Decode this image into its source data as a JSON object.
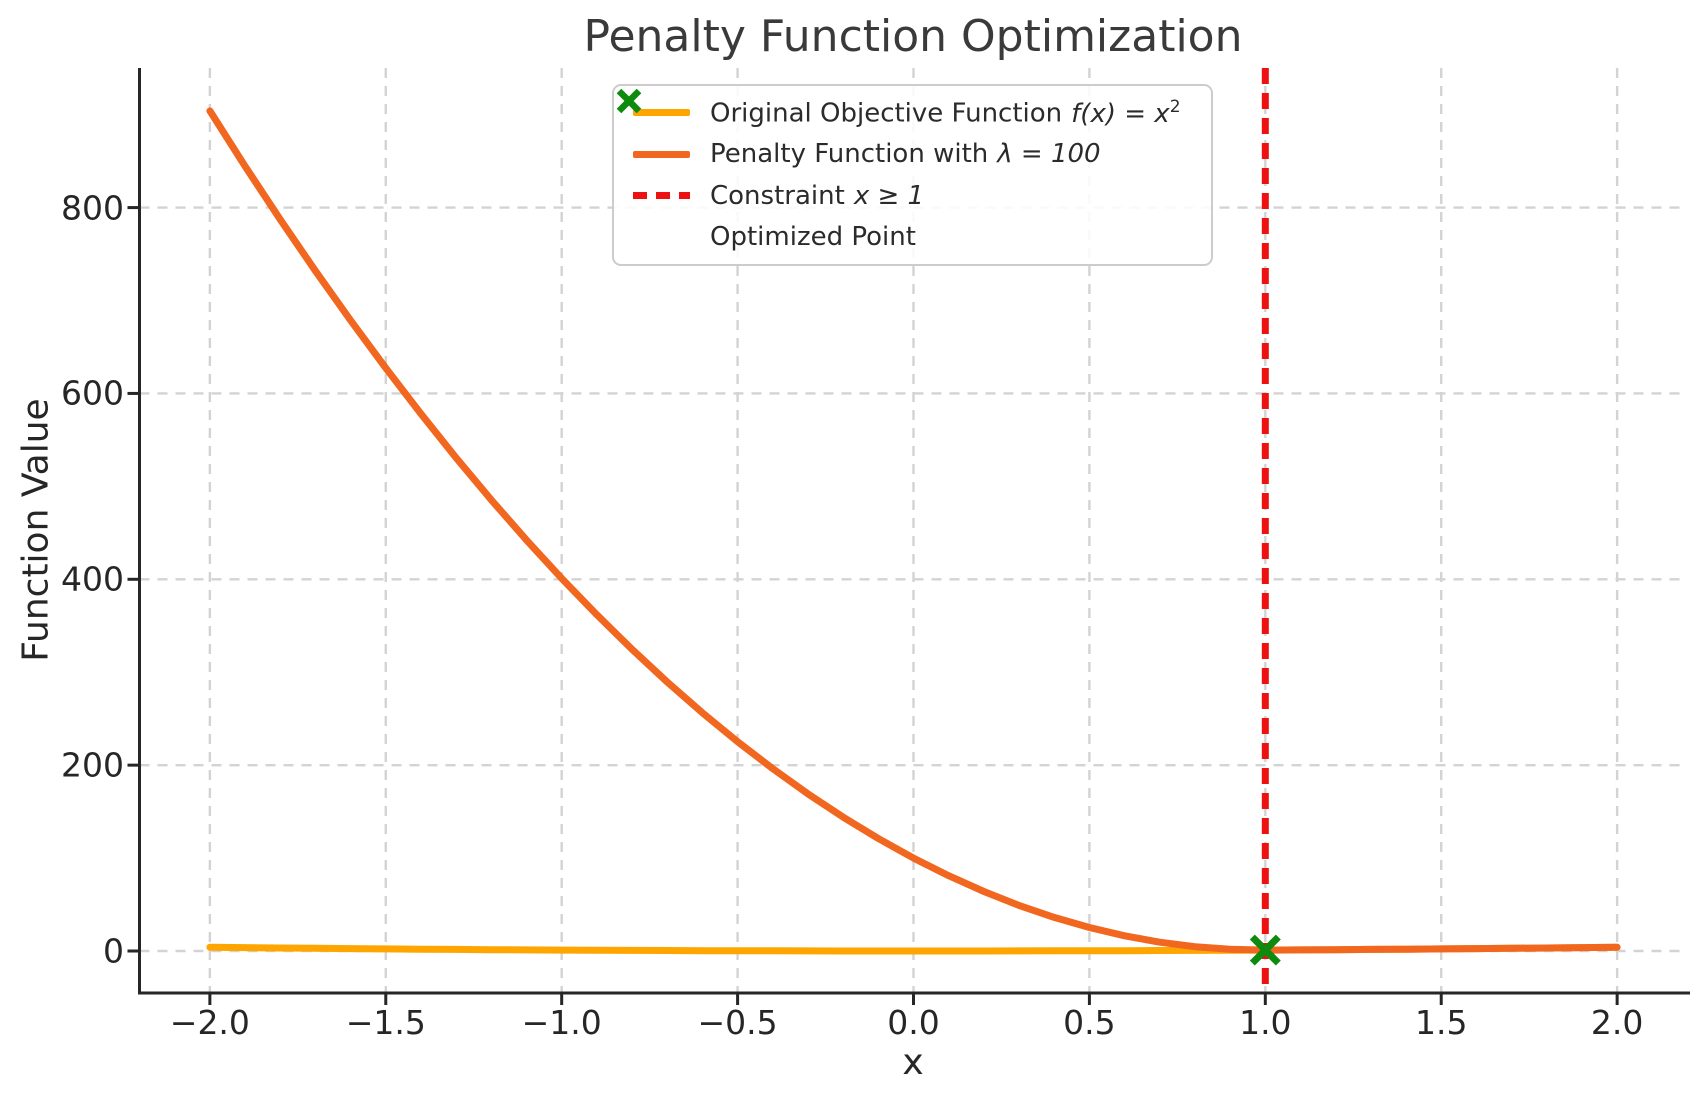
{
  "chart_data": {
    "type": "line",
    "title": "Penalty Function Optimization",
    "xlabel": "x",
    "ylabel": "Function Value",
    "xlim": [
      -2.2,
      2.2
    ],
    "ylim": [
      -45.2,
      950.2
    ],
    "grid": true,
    "background_color": "#ffffff",
    "x_ticks": {
      "values": [
        -2.0,
        -1.5,
        -1.0,
        -0.5,
        0.0,
        0.5,
        1.0,
        1.5,
        2.0
      ],
      "labels": [
        "−2.0",
        "−1.5",
        "−1.0",
        "−0.5",
        "0.0",
        "0.5",
        "1.0",
        "1.5",
        "2.0"
      ]
    },
    "y_ticks": {
      "values": [
        0,
        200,
        400,
        600,
        800
      ],
      "labels": [
        "0",
        "200",
        "400",
        "600",
        "800"
      ]
    },
    "x": [
      -2.0,
      -1.9,
      -1.8,
      -1.7,
      -1.6,
      -1.5,
      -1.4,
      -1.3,
      -1.2,
      -1.1,
      -1.0,
      -0.9,
      -0.8,
      -0.7,
      -0.6,
      -0.5,
      -0.4,
      -0.3,
      -0.2,
      -0.1,
      0.0,
      0.1,
      0.2,
      0.3,
      0.4,
      0.5,
      0.6,
      0.7,
      0.8,
      0.9,
      1.0,
      1.1,
      1.2,
      1.3,
      1.4,
      1.5,
      1.6,
      1.7,
      1.8,
      1.9,
      2.0
    ],
    "series": [
      {
        "name": "Original Objective Function f(x) = x²",
        "color": "#FFA500",
        "style": "solid",
        "values": [
          4.0,
          3.61,
          3.24,
          2.89,
          2.56,
          2.25,
          1.96,
          1.69,
          1.44,
          1.21,
          1.0,
          0.81,
          0.64,
          0.49,
          0.36,
          0.25,
          0.16,
          0.09,
          0.04,
          0.01,
          0.0,
          0.01,
          0.04,
          0.09,
          0.16,
          0.25,
          0.36,
          0.49,
          0.64,
          0.81,
          1.0,
          1.21,
          1.44,
          1.69,
          1.96,
          2.25,
          2.56,
          2.89,
          3.24,
          3.61,
          4.0
        ]
      },
      {
        "name": "Penalty Function with λ = 100",
        "color": "#F2671F",
        "style": "solid",
        "values": [
          904.0,
          844.61,
          787.24,
          731.89,
          678.56,
          627.25,
          577.96,
          530.69,
          485.44,
          442.21,
          401.0,
          361.81,
          324.64,
          289.49,
          256.36,
          225.25,
          196.16,
          169.09,
          144.04,
          121.01,
          100.0,
          81.01,
          64.04,
          49.09,
          36.16,
          25.25,
          16.36,
          9.49,
          4.64,
          1.81,
          1.0,
          1.21,
          1.44,
          1.69,
          1.96,
          2.25,
          2.56,
          2.89,
          3.24,
          3.61,
          4.0
        ]
      }
    ],
    "constraint_line": {
      "name": "Constraint x ≥ 1",
      "x": 1.0,
      "color": "#EE1111",
      "style": "dashed"
    },
    "optimized_point": {
      "name": "Optimized Point",
      "x": 1.0,
      "y": 1.0,
      "color": "#0E8B0E",
      "marker": "x"
    },
    "legend": {
      "position": "upper center",
      "items": [
        {
          "text": "Original Objective Function",
          "math": "f(x) = x",
          "sup": "2",
          "color": "#FFA500",
          "swatch": "line"
        },
        {
          "text": "Penalty Function with",
          "math": "λ = 100",
          "color": "#F2671F",
          "swatch": "line"
        },
        {
          "text": "Constraint",
          "math": "x ≥ 1",
          "color": "#EE1111",
          "swatch": "dashed-line"
        },
        {
          "text": "Optimized Point",
          "color": "#0E8B0E",
          "swatch": "x-marker"
        }
      ]
    }
  }
}
